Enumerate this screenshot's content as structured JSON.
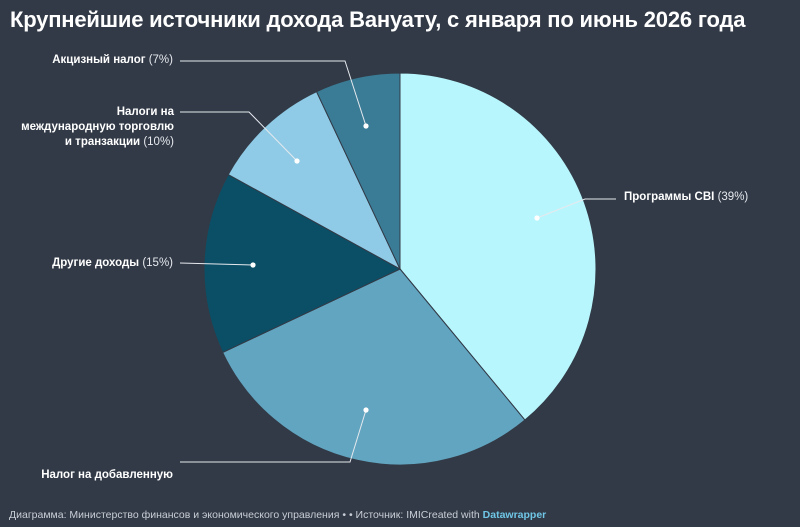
{
  "chart_data": {
    "type": "pie",
    "title": "Крупнейшие источники дохода Вануату, с января по июнь 2026 года",
    "categories": [
      "Программы CBI",
      "Налог на добавленную",
      "Другие доходы",
      "Налоги на международную торговлю и транзакции",
      "Акцизный налог"
    ],
    "values": [
      39,
      29,
      15,
      10,
      7
    ],
    "labels": [
      {
        "name": "Программы CBI",
        "pct": "(39%)"
      },
      {
        "name": "Налог на добавленную",
        "pct": ""
      },
      {
        "name": "Другие доходы",
        "pct": "(15%)"
      },
      {
        "name": "Налоги на\nмеждународную торговлю\nи транзакции",
        "pct": "(10%)"
      },
      {
        "name": "Акцизный налог",
        "pct": "(7%)"
      }
    ],
    "colors": [
      "#b8f6fd",
      "#62a5c0",
      "#0b4f66",
      "#8fcbe6",
      "#3a7b95"
    ],
    "legend": "direct labels"
  },
  "footer": {
    "chart_credit": "Диаграмма: Министерство финансов и экономического управления",
    "separator": "•",
    "source": "• Источник: IMI",
    "created_with": "Created with",
    "brand": "Datawrapper"
  },
  "colors": {
    "background": "#323a47",
    "leader": "#e6e9ee"
  }
}
